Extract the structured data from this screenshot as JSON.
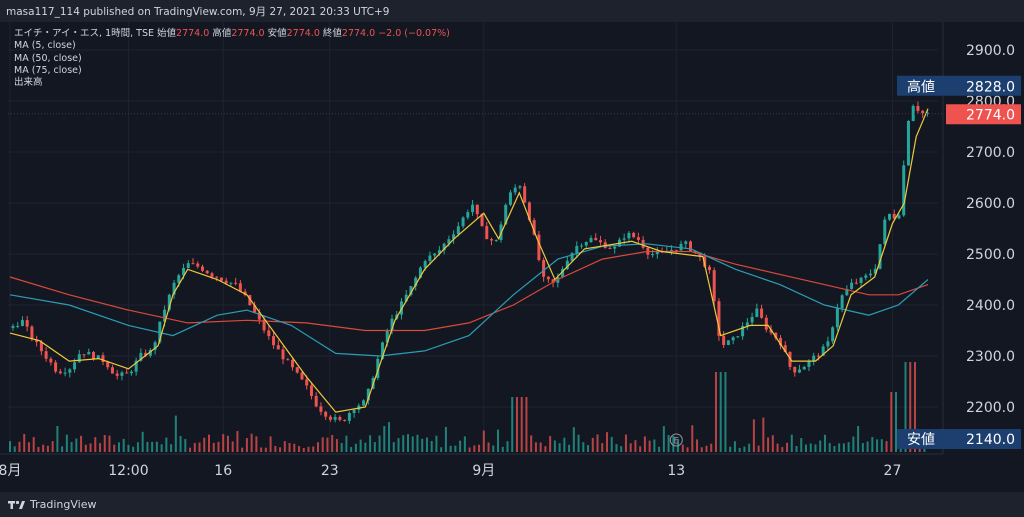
{
  "header": {
    "published": "masa117_114 published on TradingView.com, 9月 27, 2021 20:33 UTC+9"
  },
  "legend": {
    "symbol": "エイチ・アイ・エス, 1時間, TSE",
    "o_label": "始値",
    "o_value": "2774.0",
    "h_label": "高値",
    "h_value": "2774.0",
    "l_label": "安値",
    "l_value": "2774.0",
    "c_label": "終値",
    "c_value": "2774.0",
    "change": "−2.0 (−0.07%)",
    "ma5": "MA (5, close)",
    "ma50": "MA (50, close)",
    "ma75": "MA (75, close)",
    "volume": "出来高"
  },
  "footer": {
    "brand": "TradingView"
  },
  "chart_data": {
    "type": "candlestick",
    "price_axis": {
      "ticks": [
        2200,
        2300,
        2400,
        2500,
        2600,
        2700,
        2800,
        2900
      ],
      "labels": [
        "2200.0",
        "2300.0",
        "2400.0",
        "2500.0",
        "2600.0",
        "2700.0",
        "2800.0",
        "2900.0"
      ]
    },
    "x_labels": [
      "8月",
      "12:00",
      "16",
      "23",
      "9月",
      "13",
      "27"
    ],
    "markers": {
      "high": {
        "label": "高値",
        "value": "2828.0"
      },
      "last": {
        "value": "2774.0"
      },
      "low": {
        "label": "安値",
        "value": "2140.0"
      }
    },
    "close_path": [
      [
        0,
        2355
      ],
      [
        4,
        2370
      ],
      [
        8,
        2330
      ],
      [
        12,
        2300
      ],
      [
        16,
        2270
      ],
      [
        20,
        2275
      ],
      [
        24,
        2310
      ],
      [
        28,
        2300
      ],
      [
        32,
        2290
      ],
      [
        36,
        2260
      ],
      [
        40,
        2265
      ],
      [
        44,
        2300
      ],
      [
        48,
        2310
      ],
      [
        52,
        2390
      ],
      [
        56,
        2450
      ],
      [
        60,
        2480
      ],
      [
        64,
        2475
      ],
      [
        68,
        2460
      ],
      [
        72,
        2450
      ],
      [
        76,
        2440
      ],
      [
        80,
        2410
      ],
      [
        84,
        2370
      ],
      [
        88,
        2330
      ],
      [
        92,
        2300
      ],
      [
        96,
        2270
      ],
      [
        100,
        2240
      ],
      [
        104,
        2200
      ],
      [
        108,
        2180
      ],
      [
        112,
        2170
      ],
      [
        116,
        2200
      ],
      [
        120,
        2210
      ],
      [
        124,
        2290
      ],
      [
        128,
        2360
      ],
      [
        132,
        2400
      ],
      [
        136,
        2440
      ],
      [
        140,
        2490
      ],
      [
        144,
        2500
      ],
      [
        148,
        2530
      ],
      [
        152,
        2560
      ],
      [
        156,
        2600
      ],
      [
        160,
        2540
      ],
      [
        164,
        2520
      ],
      [
        168,
        2610
      ],
      [
        172,
        2640
      ],
      [
        176,
        2560
      ],
      [
        180,
        2450
      ],
      [
        184,
        2440
      ],
      [
        188,
        2490
      ],
      [
        192,
        2520
      ],
      [
        196,
        2530
      ],
      [
        200,
        2520
      ],
      [
        204,
        2510
      ],
      [
        208,
        2540
      ],
      [
        212,
        2530
      ],
      [
        216,
        2500
      ],
      [
        220,
        2500
      ],
      [
        224,
        2510
      ],
      [
        228,
        2520
      ],
      [
        232,
        2500
      ],
      [
        236,
        2470
      ],
      [
        240,
        2320
      ],
      [
        244,
        2330
      ],
      [
        248,
        2360
      ],
      [
        252,
        2390
      ],
      [
        256,
        2350
      ],
      [
        260,
        2330
      ],
      [
        264,
        2270
      ],
      [
        268,
        2280
      ],
      [
        272,
        2300
      ],
      [
        276,
        2320
      ],
      [
        280,
        2410
      ],
      [
        284,
        2440
      ],
      [
        288,
        2450
      ],
      [
        292,
        2470
      ],
      [
        296,
        2580
      ],
      [
        300,
        2570
      ],
      [
        304,
        2800
      ],
      [
        308,
        2776
      ]
    ],
    "ma5_path": [
      [
        0,
        2345
      ],
      [
        10,
        2330
      ],
      [
        20,
        2290
      ],
      [
        30,
        2295
      ],
      [
        40,
        2275
      ],
      [
        50,
        2320
      ],
      [
        55,
        2420
      ],
      [
        60,
        2470
      ],
      [
        70,
        2450
      ],
      [
        80,
        2420
      ],
      [
        90,
        2340
      ],
      [
        100,
        2260
      ],
      [
        110,
        2190
      ],
      [
        120,
        2200
      ],
      [
        130,
        2370
      ],
      [
        140,
        2470
      ],
      [
        150,
        2530
      ],
      [
        160,
        2580
      ],
      [
        165,
        2530
      ],
      [
        172,
        2620
      ],
      [
        178,
        2530
      ],
      [
        184,
        2450
      ],
      [
        194,
        2510
      ],
      [
        210,
        2525
      ],
      [
        220,
        2505
      ],
      [
        234,
        2495
      ],
      [
        240,
        2340
      ],
      [
        250,
        2360
      ],
      [
        256,
        2360
      ],
      [
        264,
        2290
      ],
      [
        272,
        2290
      ],
      [
        278,
        2320
      ],
      [
        284,
        2420
      ],
      [
        292,
        2455
      ],
      [
        298,
        2560
      ],
      [
        302,
        2600
      ],
      [
        306,
        2730
      ],
      [
        310,
        2785
      ]
    ],
    "ma50_path": [
      [
        0,
        2420
      ],
      [
        20,
        2400
      ],
      [
        40,
        2360
      ],
      [
        55,
        2340
      ],
      [
        70,
        2380
      ],
      [
        80,
        2390
      ],
      [
        95,
        2360
      ],
      [
        110,
        2305
      ],
      [
        125,
        2300
      ],
      [
        140,
        2310
      ],
      [
        155,
        2340
      ],
      [
        170,
        2420
      ],
      [
        185,
        2490
      ],
      [
        200,
        2515
      ],
      [
        215,
        2520
      ],
      [
        230,
        2510
      ],
      [
        245,
        2470
      ],
      [
        260,
        2440
      ],
      [
        275,
        2400
      ],
      [
        290,
        2380
      ],
      [
        300,
        2400
      ],
      [
        310,
        2450
      ]
    ],
    "ma75_path": [
      [
        0,
        2455
      ],
      [
        20,
        2420
      ],
      [
        40,
        2390
      ],
      [
        60,
        2365
      ],
      [
        80,
        2370
      ],
      [
        100,
        2365
      ],
      [
        120,
        2350
      ],
      [
        140,
        2350
      ],
      [
        155,
        2365
      ],
      [
        170,
        2400
      ],
      [
        185,
        2450
      ],
      [
        200,
        2490
      ],
      [
        215,
        2505
      ],
      [
        230,
        2505
      ],
      [
        245,
        2480
      ],
      [
        260,
        2460
      ],
      [
        275,
        2440
      ],
      [
        290,
        2420
      ],
      [
        300,
        2420
      ],
      [
        310,
        2440
      ]
    ]
  }
}
